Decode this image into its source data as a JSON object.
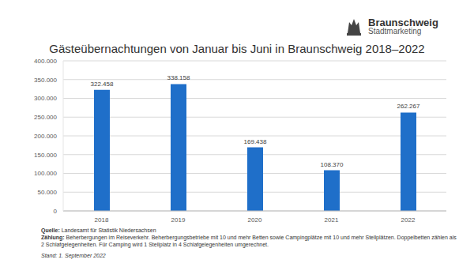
{
  "chart_data": {
    "type": "bar",
    "title": "Gästeübernachtungen von Januar bis Juni in Braunschweig 2018–2022",
    "categories": [
      "2018",
      "2019",
      "2020",
      "2021",
      "2022"
    ],
    "values": [
      322458,
      338158,
      169438,
      108370,
      262267
    ],
    "value_labels": [
      "322.458",
      "338.158",
      "169.438",
      "108.370",
      "262.267"
    ],
    "data_labels": true,
    "color": "#1f6fc9",
    "ylim": [
      0,
      400000
    ],
    "yticks": [
      0,
      {
        "value": 50000,
        "label": "50.000"
      },
      {
        "value": 100000,
        "label": "100.000"
      },
      {
        "value": 150000,
        "label": "150.000"
      },
      {
        "value": 200000,
        "label": "200.000"
      },
      {
        "value": 250000,
        "label": "250.000"
      },
      {
        "value": 300000,
        "label": "300.000"
      },
      {
        "value": 350000,
        "label": "350.000"
      },
      {
        "value": 400000,
        "label": "400.000"
      }
    ],
    "grid": true,
    "logo": [
      "Braunschweig",
      "Stadtmarketing"
    ],
    "notes": [
      {
        "label": "Quelle:",
        "text": "Landesamt für Statistik Niedersachsen"
      },
      {
        "label": "Zählung:",
        "text": "Beherbergungen im Reiseverkehr. Beherbergungsbetriebe mit 10 und mehr Betten sowie Campingplätze mit 10 und mehr Stellplätzen. Doppelbetten zählen als 2 Schlafgelegenheiten. Für Camping wird 1 Stellplatz in 4 Schlafgelegenheiten umgerechnet."
      }
    ],
    "stand": "Stand: 1. September 2022"
  }
}
